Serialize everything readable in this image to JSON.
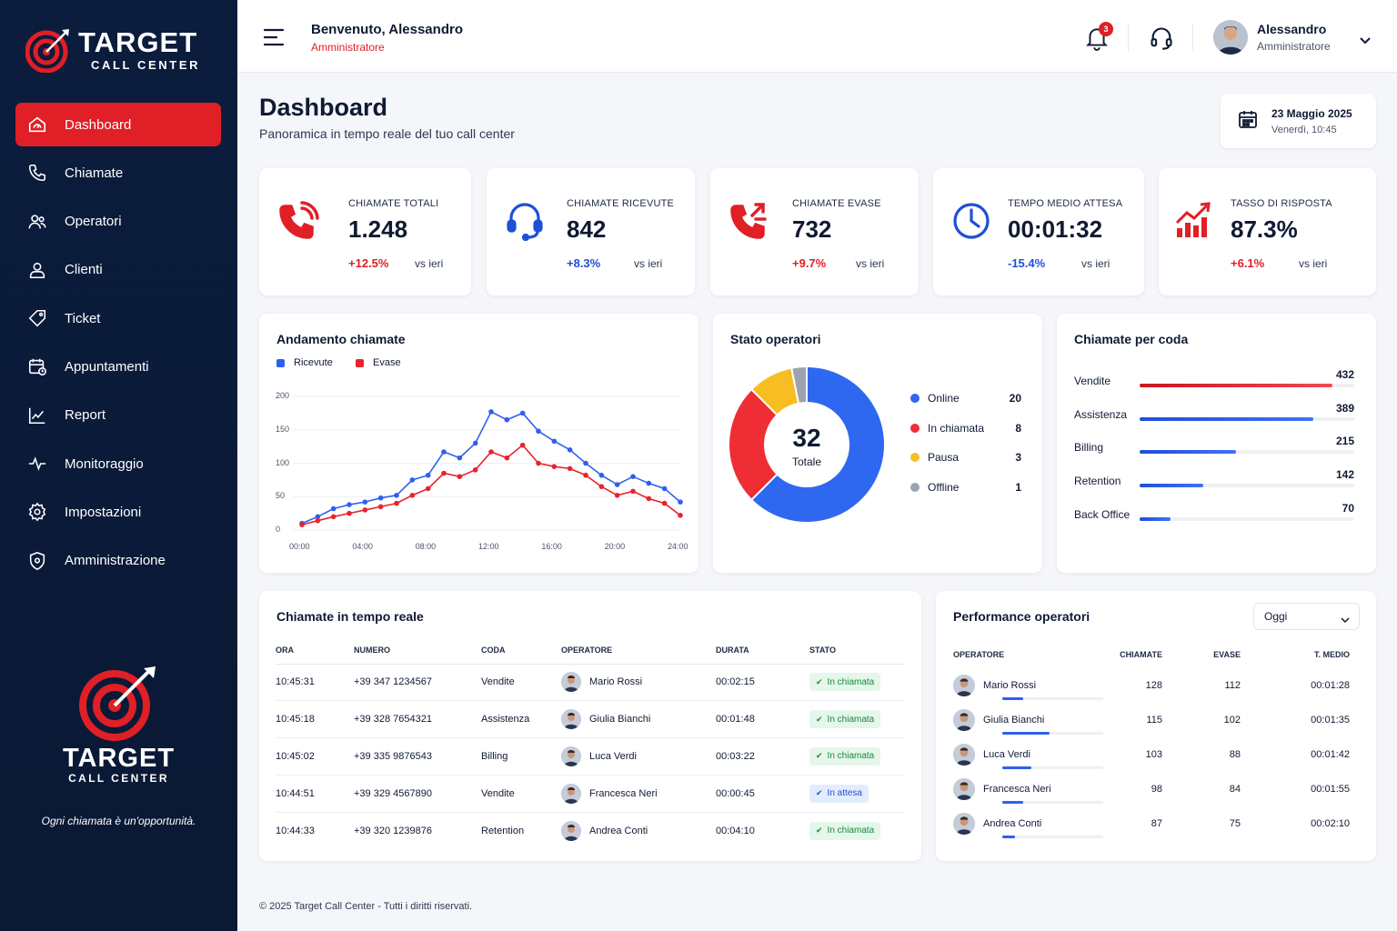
{
  "brand": {
    "name": "TARGET",
    "sub": "CALL CENTER",
    "tagline": "Ogni chiamata è un'opportunità."
  },
  "sidebar": {
    "items": [
      {
        "label": "Dashboard",
        "icon": "dashboard-icon",
        "active": true
      },
      {
        "label": "Chiamate",
        "icon": "phone-icon"
      },
      {
        "label": "Operatori",
        "icon": "users-icon"
      },
      {
        "label": "Clienti",
        "icon": "user-icon"
      },
      {
        "label": "Ticket",
        "icon": "tag-icon"
      },
      {
        "label": "Appuntamenti",
        "icon": "calendar-icon"
      },
      {
        "label": "Report",
        "icon": "report-icon"
      },
      {
        "label": "Monitoraggio",
        "icon": "pulse-icon"
      },
      {
        "label": "Impostazioni",
        "icon": "gear-icon"
      },
      {
        "label": "Amministrazione",
        "icon": "shield-icon"
      }
    ]
  },
  "topbar": {
    "welcome": "Benvenuto, Alessandro",
    "role": "Amministratore",
    "notifications": "3",
    "user_name": "Alessandro",
    "user_role": "Amministratore"
  },
  "header": {
    "title": "Dashboard",
    "subtitle": "Panoramica in tempo reale del tuo call center",
    "date": "23 Maggio 2025",
    "time": "Venerdì, 10:45"
  },
  "kpis": [
    {
      "label": "CHIAMATE TOTALI",
      "value": "1.248",
      "change": "+12.5%",
      "vs": "vs ieri",
      "color": "#e01f26"
    },
    {
      "label": "CHIAMATE RICEVUTE",
      "value": "842",
      "change": "+8.3%",
      "vs": "vs ieri",
      "color": "#1d4fd8"
    },
    {
      "label": "CHIAMATE EVASE",
      "value": "732",
      "change": "+9.7%",
      "vs": "vs ieri",
      "color": "#e01f26"
    },
    {
      "label": "TEMPO MEDIO ATTESA",
      "value": "00:01:32",
      "change": "-15.4%",
      "vs": "vs ieri",
      "color": "#1d4fd8"
    },
    {
      "label": "TASSO DI RISPOSTA",
      "value": "87.3%",
      "change": "+6.1%",
      "vs": "vs ieri",
      "color": "#e01f26"
    }
  ],
  "trend": {
    "title": "Andamento chiamate"
  },
  "chart_data": [
    {
      "type": "line",
      "title": "Andamento chiamate",
      "x": [
        "00:00",
        "01:00",
        "02:00",
        "03:00",
        "04:00",
        "05:00",
        "06:00",
        "07:00",
        "08:00",
        "09:00",
        "10:00",
        "11:00",
        "12:00",
        "13:00",
        "14:00",
        "15:00",
        "16:00",
        "17:00",
        "18:00",
        "19:00",
        "20:00",
        "21:00",
        "22:00",
        "23:00",
        "24:00"
      ],
      "xticks": [
        "00:00",
        "04:00",
        "08:00",
        "12:00",
        "16:00",
        "20:00",
        "24:00"
      ],
      "yticks": [
        "200",
        "150",
        "100",
        "50",
        "0"
      ],
      "ylim": [
        0,
        200
      ],
      "grid": true,
      "legend": "top-left",
      "series": [
        {
          "name": "Ricevute",
          "color": "#2f5ff0",
          "values": [
            10,
            20,
            32,
            38,
            42,
            48,
            52,
            75,
            82,
            117,
            108,
            130,
            177,
            165,
            175,
            148,
            133,
            120,
            100,
            82,
            68,
            80,
            70,
            62,
            42
          ]
        },
        {
          "name": "Evase",
          "color": "#e8232c",
          "values": [
            8,
            14,
            20,
            25,
            30,
            35,
            40,
            52,
            62,
            85,
            80,
            90,
            117,
            108,
            127,
            100,
            95,
            92,
            82,
            65,
            52,
            58,
            47,
            40,
            22
          ]
        }
      ]
    },
    {
      "type": "pie",
      "title": "Stato operatori",
      "center_value": "32",
      "center_label": "Totale",
      "slices": [
        {
          "name": "Online",
          "value": 20,
          "color": "#2f68f0"
        },
        {
          "name": "In chiamata",
          "value": 8,
          "color": "#ef2d35"
        },
        {
          "name": "Pausa",
          "value": 3,
          "color": "#f8bd22"
        },
        {
          "name": "Offline",
          "value": 1,
          "color": "#9ba3af"
        }
      ]
    },
    {
      "type": "bar",
      "title": "Chiamate per coda",
      "categories": [
        "Vendite",
        "Assistenza",
        "Billing",
        "Retention",
        "Back Office"
      ],
      "values": [
        432,
        389,
        215,
        142,
        70
      ],
      "colors": [
        "#e01f26",
        "#1d4fd8",
        "#1d4fd8",
        "#1d4fd8",
        "#1d4fd8"
      ]
    }
  ],
  "realtime": {
    "title": "Chiamate in tempo reale",
    "columns": [
      "ORA",
      "NUMERO",
      "CODA",
      "OPERATORE",
      "DURATA",
      "STATO"
    ],
    "rows": [
      {
        "ora": "10:45:31",
        "numero": "+39 347 1234567",
        "coda": "Vendite",
        "operatore": "Mario Rossi",
        "durata": "00:02:15",
        "stato": "In chiamata",
        "kind": "g"
      },
      {
        "ora": "10:45:18",
        "numero": "+39 328 7654321",
        "coda": "Assistenza",
        "operatore": "Giulia Bianchi",
        "durata": "00:01:48",
        "stato": "In chiamata",
        "kind": "g"
      },
      {
        "ora": "10:45:02",
        "numero": "+39 335 9876543",
        "coda": "Billing",
        "operatore": "Luca Verdi",
        "durata": "00:03:22",
        "stato": "In chiamata",
        "kind": "g"
      },
      {
        "ora": "10:44:51",
        "numero": "+39 329 4567890",
        "coda": "Vendite",
        "operatore": "Francesca Neri",
        "durata": "00:00:45",
        "stato": "In attesa",
        "kind": "b"
      },
      {
        "ora": "10:44:33",
        "numero": "+39 320 1239876",
        "coda": "Retention",
        "operatore": "Andrea Conti",
        "durata": "00:04:10",
        "stato": "In chiamata",
        "kind": "g"
      }
    ]
  },
  "performance": {
    "title": "Performance operatori",
    "filter": "Oggi",
    "columns": [
      "OPERATORE",
      "CHIAMATE",
      "EVASE",
      "T. MEDIO"
    ],
    "rows": [
      {
        "name": "Mario Rossi",
        "chiamate": "128",
        "evase": "112",
        "tmedio": "00:01:28",
        "progress": 0.21
      },
      {
        "name": "Giulia Bianchi",
        "chiamate": "115",
        "evase": "102",
        "tmedio": "00:01:35",
        "progress": 0.47
      },
      {
        "name": "Luca Verdi",
        "chiamate": "103",
        "evase": "88",
        "tmedio": "00:01:42",
        "progress": 0.29
      },
      {
        "name": "Francesca Neri",
        "chiamate": "98",
        "evase": "84",
        "tmedio": "00:01:55",
        "progress": 0.21
      },
      {
        "name": "Andrea Conti",
        "chiamate": "87",
        "evase": "75",
        "tmedio": "00:02:10",
        "progress": 0.13
      }
    ]
  },
  "footer": "© 2025 Target Call Center - Tutti i diritti riservati."
}
